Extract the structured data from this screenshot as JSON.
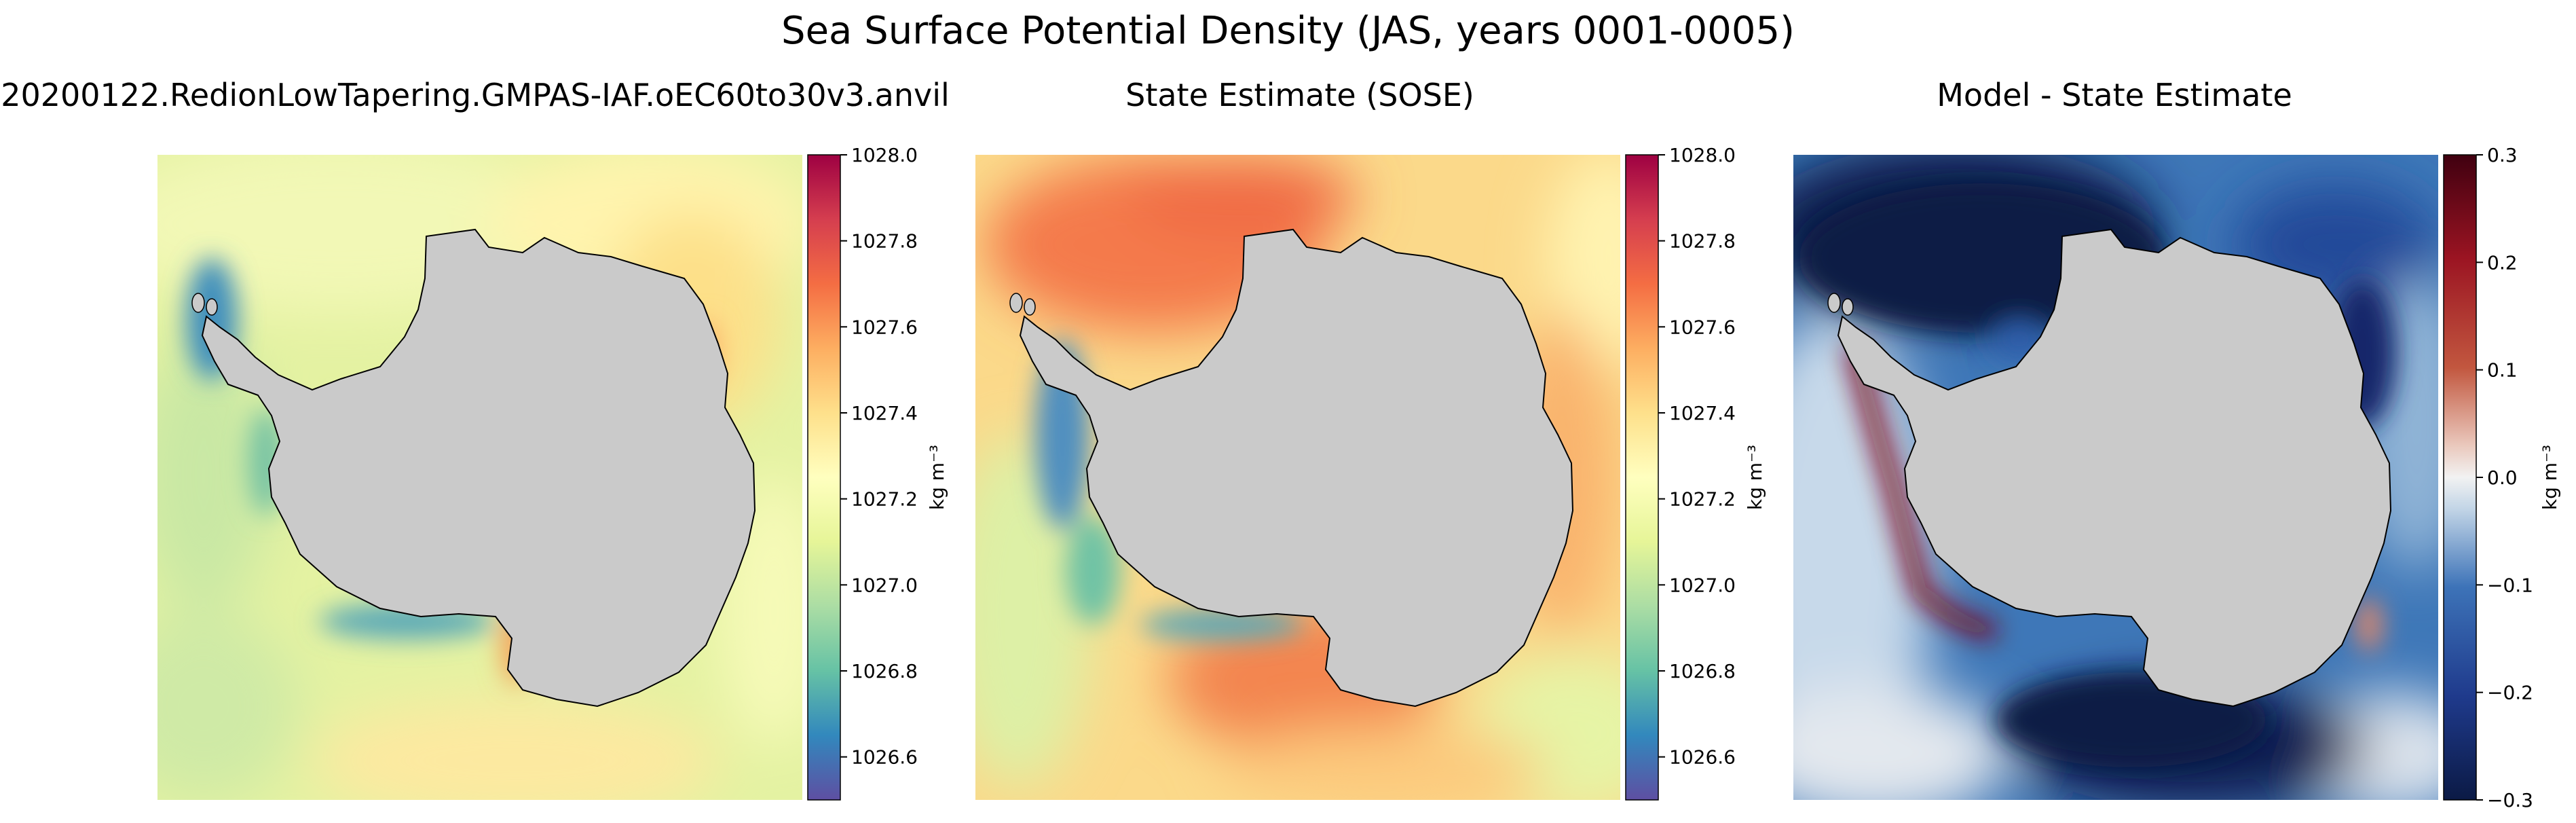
{
  "figure": {
    "title": "Sea Surface Potential Density (JAS, years 0001-0005)"
  },
  "chart_data": [
    {
      "type": "heatmap",
      "title": "20200122.RedionLowTapering.GMPAS-IAF.oEC60to30v3.anvil",
      "field": "Sea surface potential density (model)",
      "colormap": "Spectral_r",
      "colorbar": {
        "label": "kg m⁻³",
        "vmin": 1026.5,
        "vmax": 1028.0,
        "ticks": [
          1026.6,
          1026.8,
          1027.0,
          1027.2,
          1027.4,
          1027.6,
          1027.8,
          1028.0
        ],
        "tick_labels": [
          "1026.6",
          "1026.8",
          "1027.0",
          "1027.2",
          "1027.4",
          "1027.6",
          "1027.8",
          "1028.0"
        ]
      },
      "land_color": "#cccccc"
    },
    {
      "type": "heatmap",
      "title": "State Estimate (SOSE)",
      "field": "Sea surface potential density (SOSE)",
      "colormap": "Spectral_r",
      "colorbar": {
        "label": "kg m⁻³",
        "vmin": 1026.5,
        "vmax": 1028.0,
        "ticks": [
          1026.6,
          1026.8,
          1027.0,
          1027.2,
          1027.4,
          1027.6,
          1027.8,
          1028.0
        ],
        "tick_labels": [
          "1026.6",
          "1026.8",
          "1027.0",
          "1027.2",
          "1027.4",
          "1027.6",
          "1027.8",
          "1028.0"
        ]
      },
      "land_color": "#cccccc"
    },
    {
      "type": "heatmap",
      "title": "Model - State Estimate",
      "field": "Difference (model minus SOSE)",
      "colormap": "RdBu_r",
      "colorbar": {
        "label": "kg m⁻³",
        "vmin": -0.3,
        "vmax": 0.3,
        "ticks": [
          -0.3,
          -0.2,
          -0.1,
          0.0,
          0.1,
          0.2,
          0.3
        ],
        "tick_labels": [
          "−0.3",
          "−0.2",
          "−0.1",
          "0.0",
          "0.1",
          "0.2",
          "0.3"
        ]
      },
      "land_color": "#cccccc"
    }
  ]
}
